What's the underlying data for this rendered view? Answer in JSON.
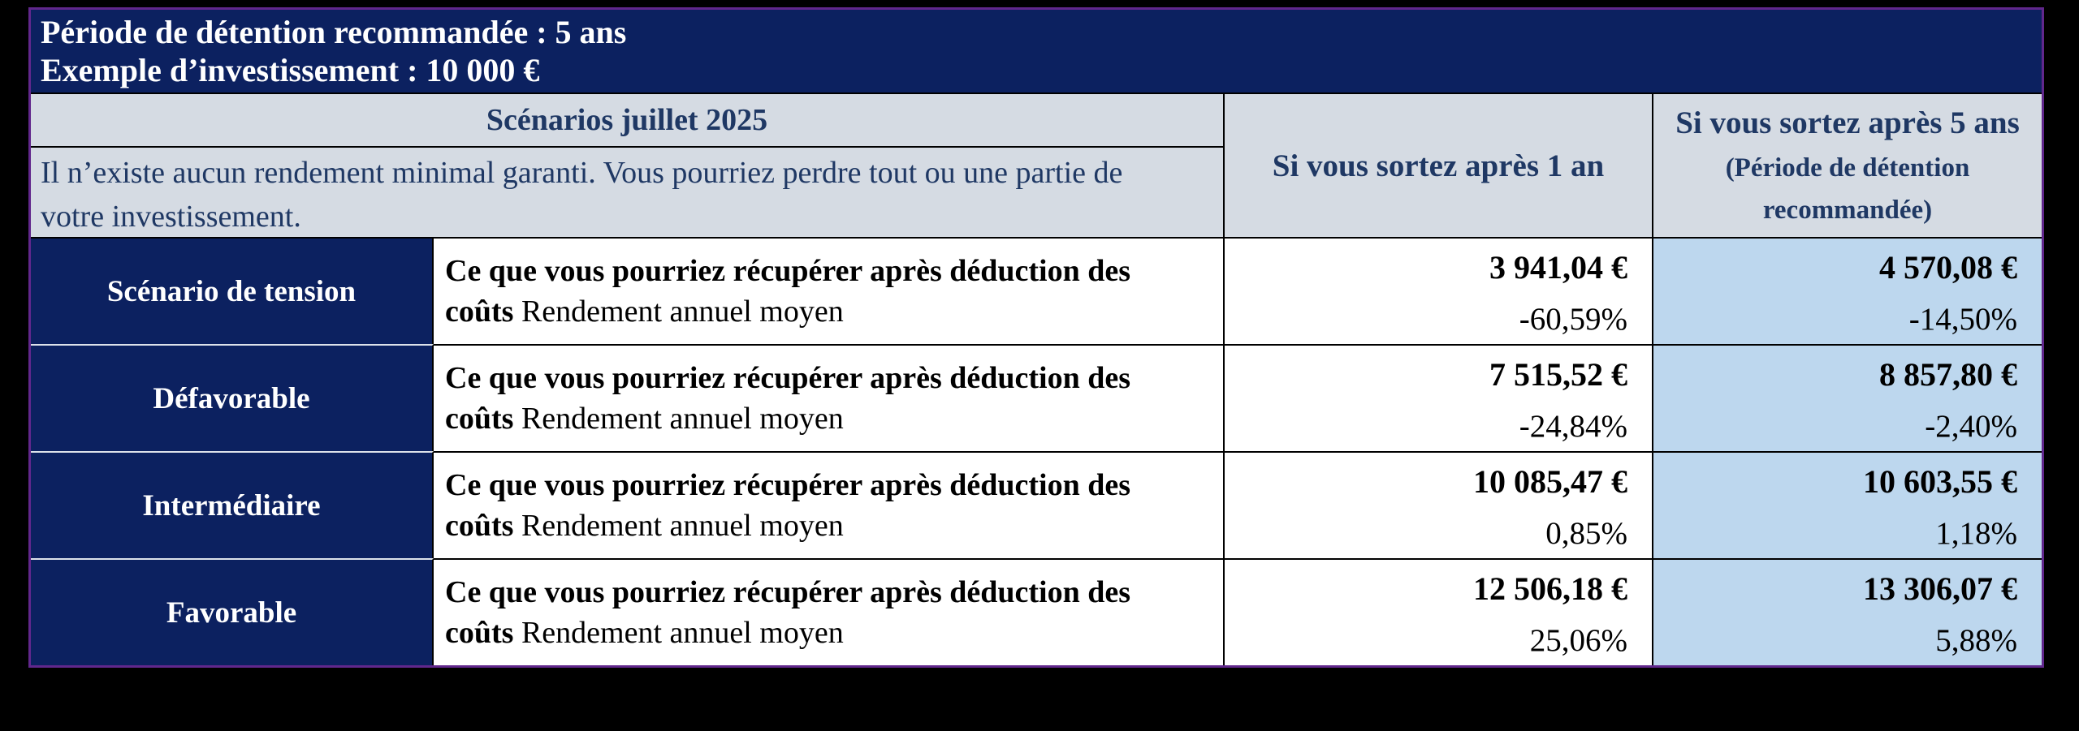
{
  "top_banner": {
    "line1": "Période de détention recommandée : 5 ans",
    "line2": "Exemple d’investissement : 10 000 €"
  },
  "table": {
    "title": "Scénarios juillet 2025",
    "disclaimer": "Il n’existe aucun rendement minimal garanti. Vous pourriez perdre tout ou une partie de votre investissement.",
    "col_1yr_header": "Si vous sortez après 1 an",
    "col_5yr_header": "Si vous sortez après 5 ans",
    "col_5yr_subheader": "(Période de détention recommandée)",
    "row_desc_bold": "Ce que vous pourriez récupérer après déduction des coûts",
    "row_desc_regular": "Rendement annuel moyen",
    "rows": [
      {
        "label": "Scénario de tension",
        "amount_1yr": "3 941,04 €",
        "return_1yr": "-60,59%",
        "amount_5yr": "4 570,08 €",
        "return_5yr": "-14,50%"
      },
      {
        "label": "Défavorable",
        "amount_1yr": "7 515,52 €",
        "return_1yr": "-24,84%",
        "amount_5yr": "8 857,80 €",
        "return_5yr": "-2,40%"
      },
      {
        "label": "Intermédiaire",
        "amount_1yr": "10 085,47 €",
        "return_1yr": "0,85%",
        "amount_5yr": "10 603,55 €",
        "return_5yr": "1,18%"
      },
      {
        "label": "Favorable",
        "amount_1yr": "12 506,18 €",
        "return_1yr": "25,06%",
        "amount_5yr": "13 306,07 €",
        "return_5yr": "5,88%"
      }
    ]
  },
  "colors": {
    "navy_fill": "#0c2160",
    "header_gray_blue": "#d5dbe3",
    "light_blue_column": "#bdd7ee",
    "purple_border": "#61278c",
    "navy_text": "#1f3864",
    "page_background": "#000000"
  }
}
